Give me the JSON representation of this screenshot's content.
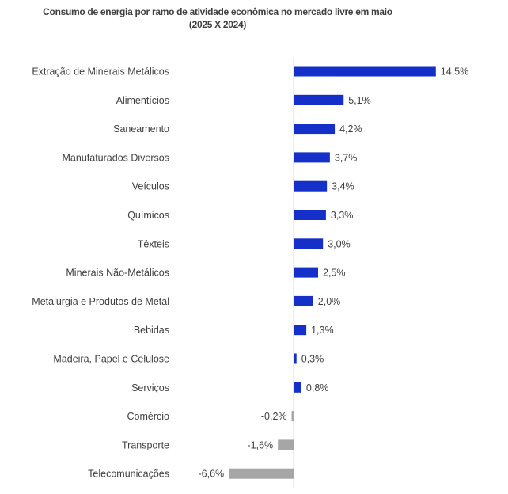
{
  "chart_data": {
    "type": "bar",
    "orientation": "horizontal",
    "title": "Consumo de energia por ramo de atividade econômica no mercado livre em maio",
    "subtitle": "(2025 X 2024)",
    "categories": [
      "Extração de Minerais Metálicos",
      "Alimentícios",
      "Saneamento",
      "Manufaturados Diversos",
      "Veículos",
      "Químicos",
      "Têxteis",
      "Minerais Não-Metálicos",
      "Metalurgia e Produtos de Metal",
      "Bebidas",
      "Madeira, Papel e Celulose",
      "Serviços",
      "Comércio",
      "Transporte",
      "Telecomunicações"
    ],
    "values": [
      14.5,
      5.1,
      4.2,
      3.7,
      3.4,
      3.3,
      3.0,
      2.5,
      2.0,
      1.3,
      0.3,
      0.8,
      -0.2,
      -1.6,
      -6.6
    ],
    "data_labels": [
      "14,5%",
      "5,1%",
      "4,2%",
      "3,7%",
      "3,4%",
      "3,3%",
      "3,0%",
      "2,5%",
      "2,0%",
      "1,3%",
      "0,3%",
      "0,8%",
      "-0,2%",
      "-1,6%",
      "-6,6%"
    ],
    "unit": "%",
    "colors": {
      "positive": "#1530c8",
      "negative": "#a6a6a6",
      "axis": "#d9d9d9"
    },
    "gridlines": false,
    "legend": "none"
  }
}
